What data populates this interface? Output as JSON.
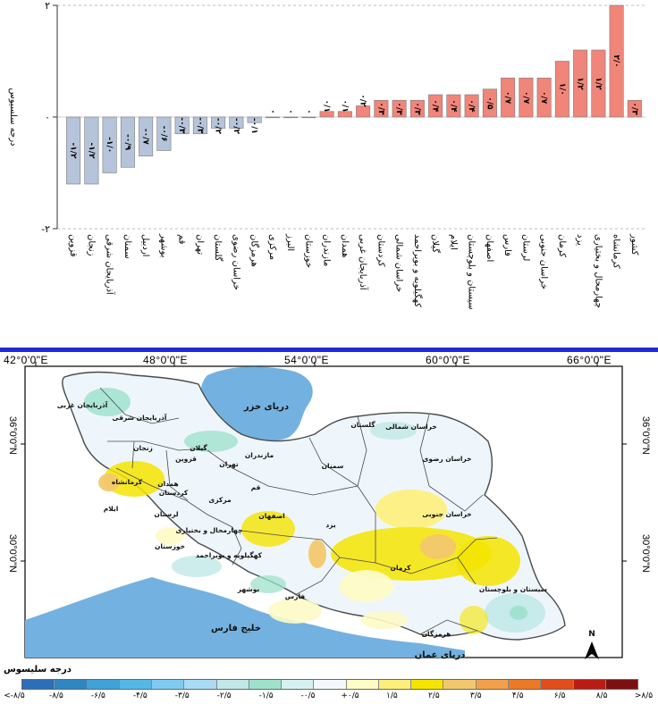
{
  "chart_data": {
    "type": "bar",
    "title": "",
    "ylabel": "درجه سلسیوس",
    "ylim": [
      -2,
      2
    ],
    "yticks": [
      "-۲",
      "۰",
      "۲"
    ],
    "positive_color": "#f0857a",
    "negative_color": "#b6c4db",
    "categories": [
      "قزوین",
      "زنجان",
      "آذربایجان شرقی",
      "سمنان",
      "اردبیل",
      "بوشهر",
      "قم",
      "تهران",
      "گلستان",
      "خراسان رضوی",
      "هرمزگان",
      "مرکزی",
      "البرز",
      "خوزستان",
      "مازندران",
      "همدان",
      "آذربایجان غربی",
      "کردستان",
      "خراسان شمالی",
      "کهگیلویه و بویراحمد",
      "گیلان",
      "ایلام",
      "سیستان و بلوچستان",
      "اصفهان",
      "فارس",
      "لرستان",
      "خراسان جنوبی",
      "کرمان",
      "یزد",
      "چهارمحال و بختیاری",
      "کرمانشاه",
      "کشور"
    ],
    "values": [
      -1.2,
      -1.2,
      -1.0,
      -0.9,
      -0.7,
      -0.6,
      -0.3,
      -0.3,
      -0.2,
      -0.2,
      -0.1,
      0.0,
      0.0,
      0.0,
      0.1,
      0.1,
      0.2,
      0.3,
      0.3,
      0.3,
      0.4,
      0.4,
      0.4,
      0.5,
      0.7,
      0.7,
      0.7,
      1.0,
      1.2,
      1.2,
      2.0,
      0.3
    ],
    "value_labels": [
      "-۱/۲",
      "-۱/۲",
      "-۱/۰",
      "-۰/۹",
      "-۰/۷",
      "-۰/۶",
      "-۰/۳",
      "-۰/۳",
      "-۰/۲",
      "-۰/۲",
      "-۰/۱",
      "۰",
      "۰",
      "۰",
      "۰/۱",
      "۰/۱",
      "۰/۲",
      "۰/۳",
      "۰/۳",
      "۰/۳",
      "۰/۴",
      "۰/۴",
      "۰/۴",
      "۰/۵",
      "۰/۷",
      "۰/۷",
      "۰/۷",
      "۱/۰",
      "۱/۲",
      "۱/۲",
      "۲/۰",
      "۰/۳"
    ]
  },
  "map": {
    "lon_labels": [
      "42°0'0\"E",
      "48°0'0\"E",
      "54°0'0\"E",
      "60°0'0\"E",
      "66°0'0\"E"
    ],
    "lat_labels": [
      "36°0'0\"N",
      "30°0'0\"N"
    ],
    "water_labels": {
      "caspian": "دریای خزر",
      "gulf": "خلیج فارس",
      "oman": "دریای عمان"
    },
    "province_labels": [
      "آذربایجان غربی",
      "آذربایجان شرقی",
      "گیلان",
      "مازندران",
      "گلستان",
      "خراسان شمالی",
      "خراسان رضوی",
      "سمنان",
      "تهران",
      "قزوین",
      "زنجان",
      "همدان",
      "کرمانشاه",
      "کردستان",
      "ایلام",
      "لرستان",
      "مرکزی",
      "قم",
      "اصفهان",
      "یزد",
      "خراسان جنوبی",
      "چهارمحال و بختیاری",
      "کهگیلویه و بویراحمد",
      "خوزستان",
      "فارس",
      "کرمان",
      "بوشهر",
      "هرمزگان",
      "سیستان و بلوچستان"
    ],
    "compass_label": "N",
    "water_color": "#73b2e0",
    "land_base_color": "#eef6fb"
  },
  "legend": {
    "title": "درجه سلیسوس",
    "colors": [
      "#2c6fb8",
      "#2f86c2",
      "#3ea2d6",
      "#55b7e6",
      "#7fcbf0",
      "#a8dcf5",
      "#bfe8e6",
      "#9fe2cc",
      "#d5f2f0",
      "#f2f8fb",
      "#fdfbc6",
      "#fdf07a",
      "#f5e400",
      "#f2c86e",
      "#f2a14a",
      "#ec7a24",
      "#e04e1c",
      "#b91c12",
      "#7c1010"
    ],
    "labels": [
      "<-۸/۵",
      "-۸/۵",
      "-۶/۵",
      "-۴/۵",
      "-۳/۵",
      "-۲/۵",
      "-۱/۵",
      "-۰/۵",
      "+۰/۵",
      "۱/۵",
      "۲/۵",
      "۳/۵",
      "۴/۵",
      "۶/۵",
      "۸/۵",
      ">۸/۵"
    ]
  }
}
